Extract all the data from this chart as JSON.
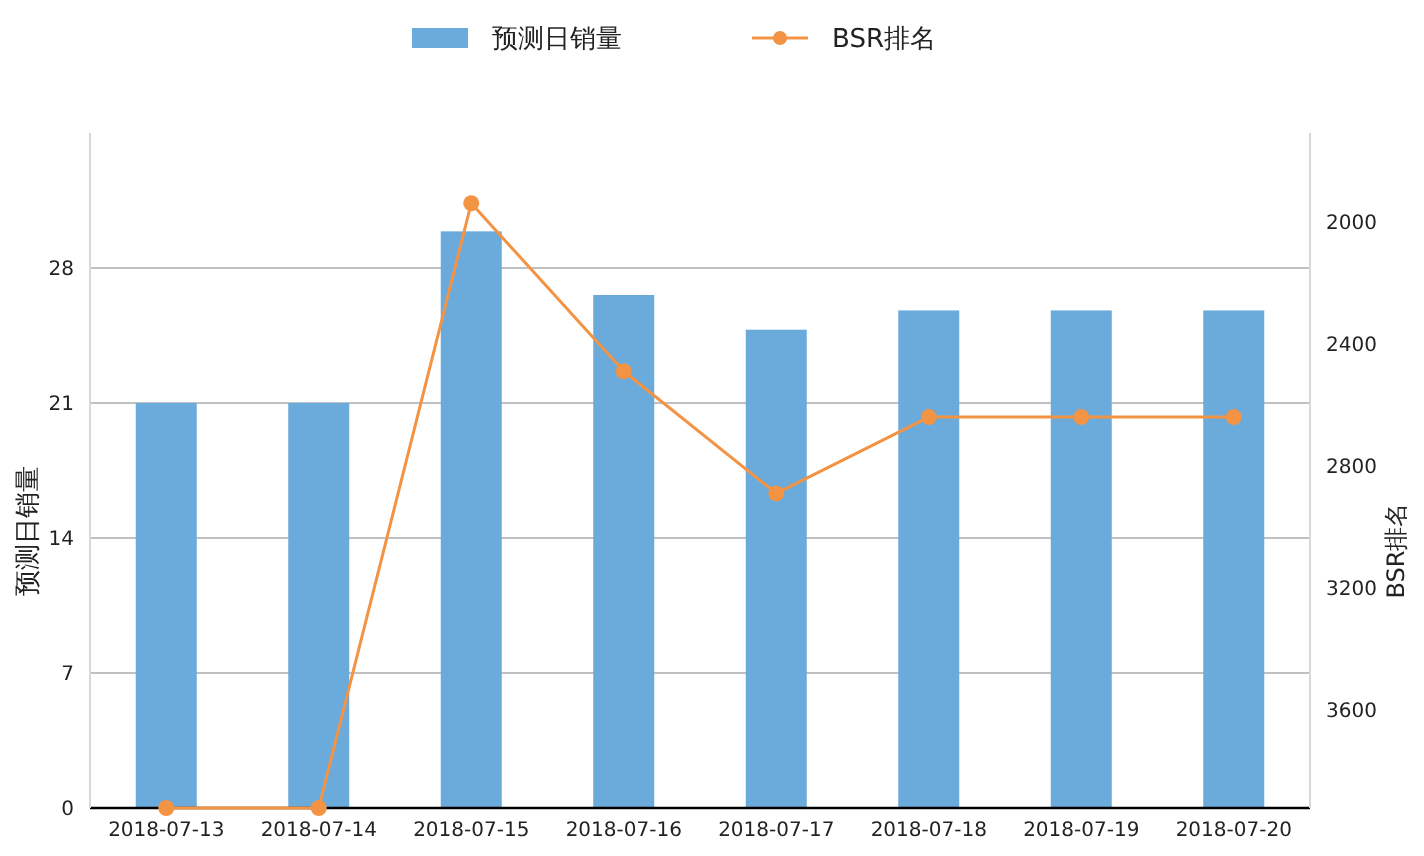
{
  "chart_data": {
    "type": "bar",
    "categories": [
      "2018-07-13",
      "2018-07-14",
      "2018-07-15",
      "2018-07-16",
      "2018-07-17",
      "2018-07-18",
      "2018-07-19",
      "2018-07-20"
    ],
    "series": [
      {
        "name": "预测日销量",
        "color": "#6aabdc",
        "values": [
          21,
          21,
          29.9,
          26.6,
          24.8,
          25.8,
          25.8,
          25.8
        ]
      },
      {
        "name": "BSR排名",
        "type": "line",
        "axis": "y2",
        "color": "#f39344",
        "values": [
          3920,
          3920,
          1940,
          2490,
          2890,
          2640,
          2640,
          2640
        ]
      }
    ],
    "ylabel": "预测日销量",
    "y2label": "BSR排名",
    "ylim": [
      0,
      35
    ],
    "yticks": [
      0,
      7,
      14,
      21,
      28
    ],
    "y2lim": [
      3920,
      1710
    ],
    "y2ticks": [
      2000,
      2400,
      2800,
      3200,
      3600
    ],
    "grid": "y",
    "legend": "top",
    "marker": "circle",
    "line_style": "solid"
  }
}
